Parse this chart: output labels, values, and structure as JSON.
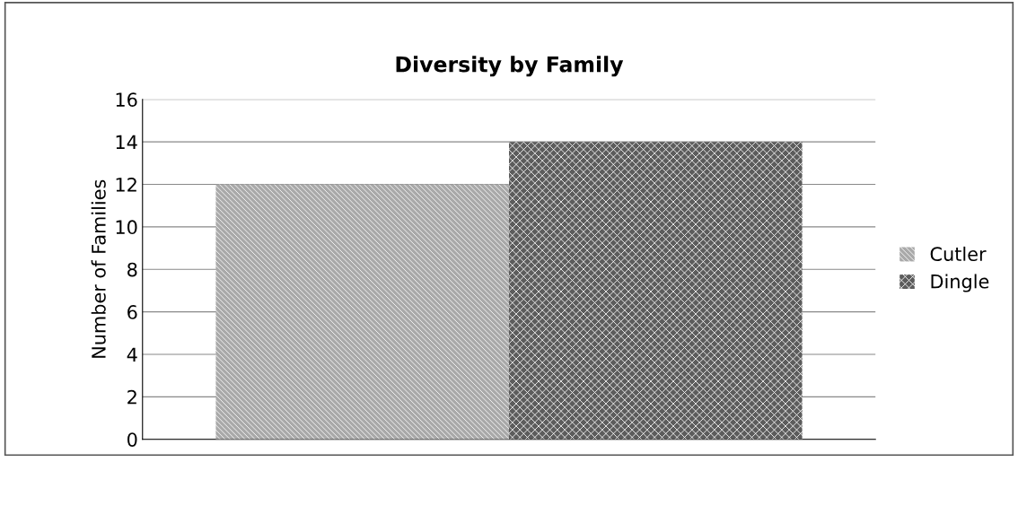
{
  "chart_data": {
    "type": "bar",
    "title": "Diversity by Family",
    "ylabel": "Number of Families",
    "categories": [
      null
    ],
    "series": [
      {
        "name": "Cutler",
        "color": "#a9a9a9",
        "values": [
          12
        ]
      },
      {
        "name": "Dingle",
        "color": "#5c5c5c",
        "values": [
          14
        ]
      }
    ],
    "ylim": [
      0,
      16
    ],
    "yticks": [
      0,
      2,
      4,
      6,
      8,
      10,
      12,
      14,
      16
    ],
    "grid": "y",
    "legend": "right",
    "tick_labels": "y"
  }
}
